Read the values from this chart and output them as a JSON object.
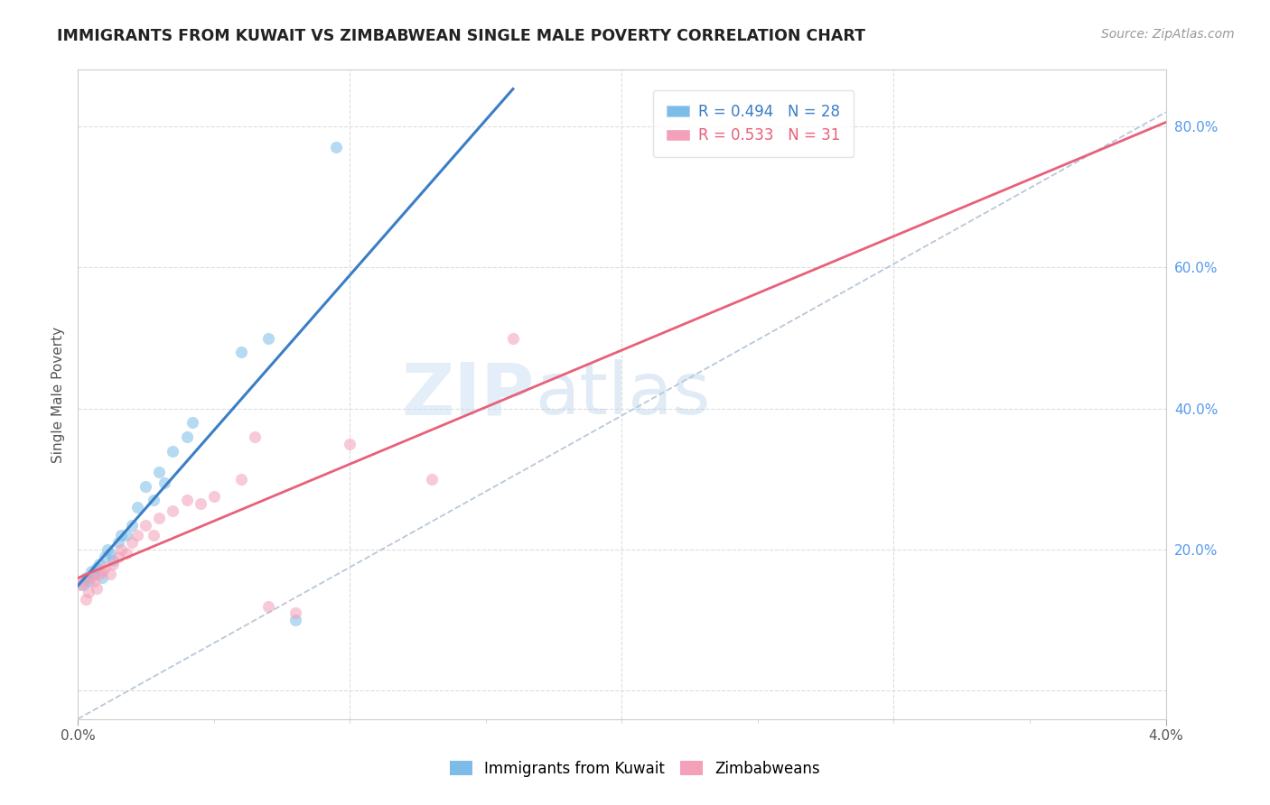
{
  "title": "IMMIGRANTS FROM KUWAIT VS ZIMBABWEAN SINGLE MALE POVERTY CORRELATION CHART",
  "source": "Source: ZipAtlas.com",
  "ylabel": "Single Male Poverty",
  "right_yticks": [
    0.0,
    0.2,
    0.4,
    0.6,
    0.8
  ],
  "right_yticklabels": [
    "",
    "20.0%",
    "40.0%",
    "60.0%",
    "80.0%"
  ],
  "watermark_zip": "ZIP",
  "watermark_atlas": "atlas",
  "kuwait_x": [
    0.0002,
    0.0003,
    0.0004,
    0.0005,
    0.0006,
    0.0007,
    0.0008,
    0.0009,
    0.001,
    0.0011,
    0.0012,
    0.0013,
    0.0015,
    0.0016,
    0.0018,
    0.002,
    0.0022,
    0.0025,
    0.0028,
    0.003,
    0.0032,
    0.0035,
    0.004,
    0.0042,
    0.006,
    0.007,
    0.008,
    0.0095
  ],
  "kuwait_y": [
    0.15,
    0.16,
    0.155,
    0.17,
    0.165,
    0.175,
    0.18,
    0.16,
    0.19,
    0.2,
    0.195,
    0.185,
    0.21,
    0.22,
    0.22,
    0.235,
    0.26,
    0.29,
    0.27,
    0.31,
    0.295,
    0.34,
    0.36,
    0.38,
    0.48,
    0.5,
    0.1,
    0.77
  ],
  "zimb_x": [
    0.0001,
    0.0002,
    0.0003,
    0.0004,
    0.0005,
    0.0006,
    0.0007,
    0.0008,
    0.0009,
    0.001,
    0.0012,
    0.0013,
    0.0015,
    0.0016,
    0.0018,
    0.002,
    0.0022,
    0.0025,
    0.0028,
    0.003,
    0.0035,
    0.004,
    0.0045,
    0.005,
    0.006,
    0.0065,
    0.007,
    0.008,
    0.01,
    0.013,
    0.016
  ],
  "zimb_y": [
    0.15,
    0.155,
    0.13,
    0.14,
    0.16,
    0.155,
    0.145,
    0.165,
    0.17,
    0.175,
    0.165,
    0.18,
    0.19,
    0.2,
    0.195,
    0.21,
    0.22,
    0.235,
    0.22,
    0.245,
    0.255,
    0.27,
    0.265,
    0.275,
    0.3,
    0.36,
    0.12,
    0.11,
    0.35,
    0.3,
    0.5
  ],
  "scatter_alpha": 0.55,
  "scatter_size": 90,
  "kuwait_color": "#7bbde8",
  "zimb_color": "#f4a0b8",
  "line_kuwait_color": "#3a7ec6",
  "line_zimb_color": "#e8607a",
  "dash_line_color": "#b8c8d8",
  "xlim": [
    0.0,
    0.04
  ],
  "ylim": [
    -0.04,
    0.88
  ],
  "legend_color1": "#7bbde8",
  "legend_color2": "#f4a0b8",
  "kuwait_line_xstart": 0.0,
  "kuwait_line_xend": 0.016,
  "zimb_line_xstart": 0.0,
  "zimb_line_xend": 0.04,
  "dash_xstart": 0.0,
  "dash_xend": 0.04,
  "dash_ystart": -0.04,
  "dash_yend": 0.82
}
